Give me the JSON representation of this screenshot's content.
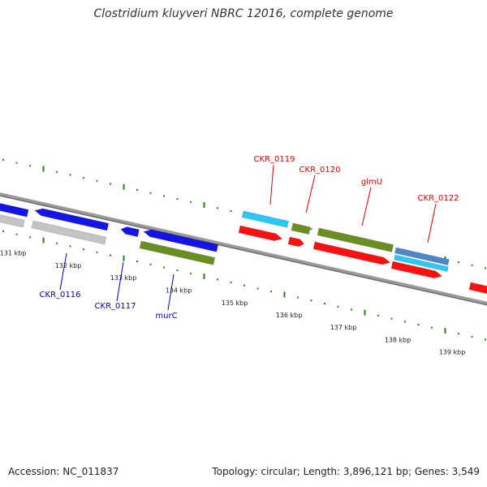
{
  "title": "Clostridium kluyveri NBRC 12016, complete genome",
  "accession": "Accession: NC_011837",
  "summary": "Topology: circular; Length: 3,896,121 bp; Genes: 3,549",
  "colors": {
    "backbone": "#8a8a8a",
    "tick": "#2e7d1f",
    "label_pos": "#e00000",
    "label_neg": "#0000c0",
    "blue": "#1414e6",
    "grey": "#c4c4c4",
    "olive": "#6b8e23",
    "red": "#ff1010",
    "cyan": "#2ac9f5",
    "steel": "#4a86c8"
  },
  "kbp_labels": [
    "131 kbp",
    "132 kbp",
    "133 kbp",
    "134 kbp",
    "135 kbp",
    "136 kbp",
    "137 kbp",
    "138 kbp",
    "139 kbp"
  ],
  "gene_labels": [
    {
      "text": "CKR_0116",
      "strand": "minus"
    },
    {
      "text": "CKR_0117",
      "strand": "minus"
    },
    {
      "text": "murC",
      "strand": "minus"
    },
    {
      "text": "CKR_0119",
      "strand": "plus"
    },
    {
      "text": "CKR_0120",
      "strand": "plus"
    },
    {
      "text": "glmU",
      "strand": "plus"
    },
    {
      "text": "CKR_0122",
      "strand": "plus"
    }
  ]
}
